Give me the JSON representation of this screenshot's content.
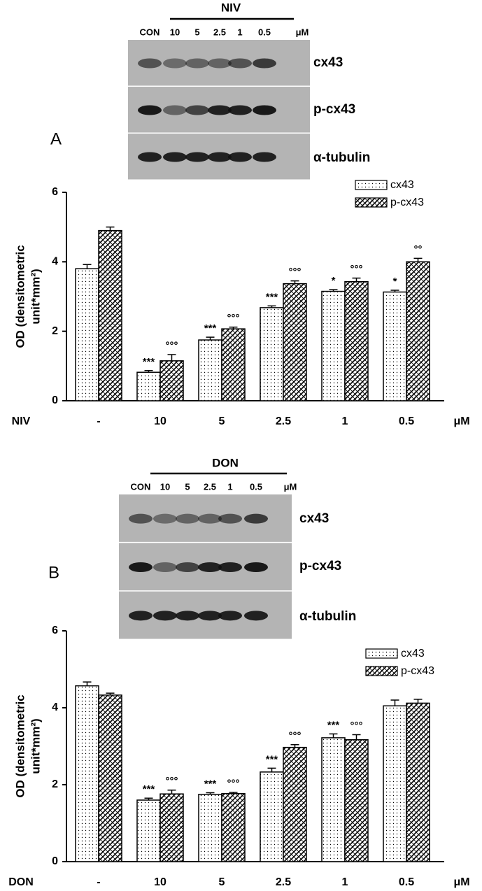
{
  "blots": [
    {
      "panel": "A",
      "treatment": "NIV",
      "lanes": [
        "CON",
        "10",
        "5",
        "2.5",
        "1",
        "0.5"
      ],
      "unit": "μM",
      "proteins": [
        "cx43",
        "p-cx43",
        "α-tubulin"
      ]
    },
    {
      "panel": "B",
      "treatment": "DON",
      "lanes": [
        "CON",
        "10",
        "5",
        "2.5",
        "1",
        "0.5"
      ],
      "unit": "μM",
      "proteins": [
        "cx43",
        "p-cx43",
        "α-tubulin"
      ]
    }
  ],
  "chart_data": [
    {
      "type": "bar",
      "y_label_lines": [
        "OD (densitometric",
        "unit*mm²)"
      ],
      "x_label": "NIV",
      "x_unit": "μM",
      "categories": [
        "-",
        "10",
        "5",
        "2.5",
        "1",
        "0.5"
      ],
      "ylim": [
        0,
        6
      ],
      "yticks": [
        0,
        2,
        4,
        6
      ],
      "legend": "top-right",
      "series": [
        {
          "name": "cx43",
          "color": "#000000",
          "pattern": "dots",
          "values": [
            3.8,
            0.82,
            1.75,
            2.68,
            3.15,
            3.13
          ],
          "errors": [
            0.12,
            0.05,
            0.08,
            0.05,
            0.05,
            0.05
          ],
          "annotations": [
            null,
            "***",
            "***",
            "***",
            "*",
            "*"
          ]
        },
        {
          "name": "p-cx43",
          "color": "#000000",
          "pattern": "hatch",
          "values": [
            4.9,
            1.15,
            2.07,
            3.37,
            3.43,
            4.0
          ],
          "errors": [
            0.1,
            0.18,
            0.05,
            0.08,
            0.1,
            0.1
          ],
          "annotations": [
            null,
            "°°°",
            "°°°",
            "°°°",
            "°°°",
            "°°"
          ]
        }
      ]
    },
    {
      "type": "bar",
      "y_label_lines": [
        "OD (densitometric",
        "unit*mm²)"
      ],
      "x_label": "DON",
      "x_unit": "μM",
      "categories": [
        "-",
        "10",
        "5",
        "2.5",
        "1",
        "0.5"
      ],
      "ylim": [
        0,
        6
      ],
      "yticks": [
        0,
        2,
        4,
        6
      ],
      "legend": "top-right",
      "series": [
        {
          "name": "cx43",
          "color": "#000000",
          "pattern": "dots",
          "values": [
            4.57,
            1.6,
            1.75,
            2.33,
            3.22,
            4.05
          ],
          "errors": [
            0.1,
            0.05,
            0.04,
            0.1,
            0.1,
            0.15
          ],
          "annotations": [
            null,
            "***",
            "***",
            "***",
            "***",
            null
          ]
        },
        {
          "name": "p-cx43",
          "color": "#000000",
          "pattern": "hatch",
          "values": [
            4.33,
            1.76,
            1.77,
            2.97,
            3.17,
            4.12
          ],
          "errors": [
            0.05,
            0.1,
            0.03,
            0.07,
            0.13,
            0.1
          ],
          "annotations": [
            null,
            "°°°",
            "°°°",
            "°°°",
            "°°°",
            null
          ]
        }
      ]
    }
  ]
}
